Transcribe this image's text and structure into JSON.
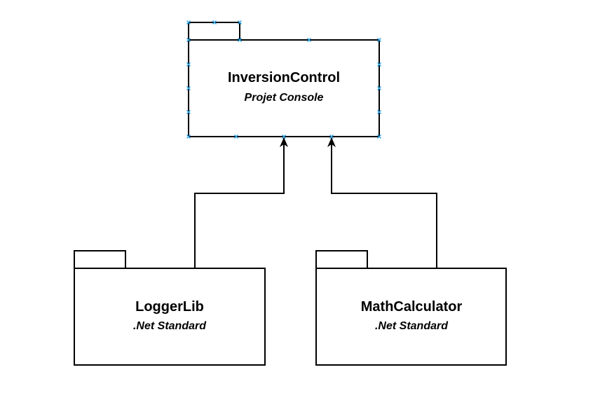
{
  "packages": [
    {
      "id": "inversion-control",
      "title": "InversionControl",
      "subtitle": "Projet Console",
      "selected": true
    },
    {
      "id": "logger-lib",
      "title": "LoggerLib",
      "subtitle": ".Net Standard",
      "selected": false
    },
    {
      "id": "math-calculator",
      "title": "MathCalculator",
      "subtitle": ".Net Standard",
      "selected": false
    }
  ],
  "edges": [
    {
      "from": "logger-lib",
      "to": "inversion-control",
      "type": "dependency-arrow"
    },
    {
      "from": "math-calculator",
      "to": "inversion-control",
      "type": "dependency-arrow"
    }
  ],
  "colors": {
    "stroke": "#000000",
    "fill": "#ffffff",
    "selection_handle": "#29a3e6"
  }
}
